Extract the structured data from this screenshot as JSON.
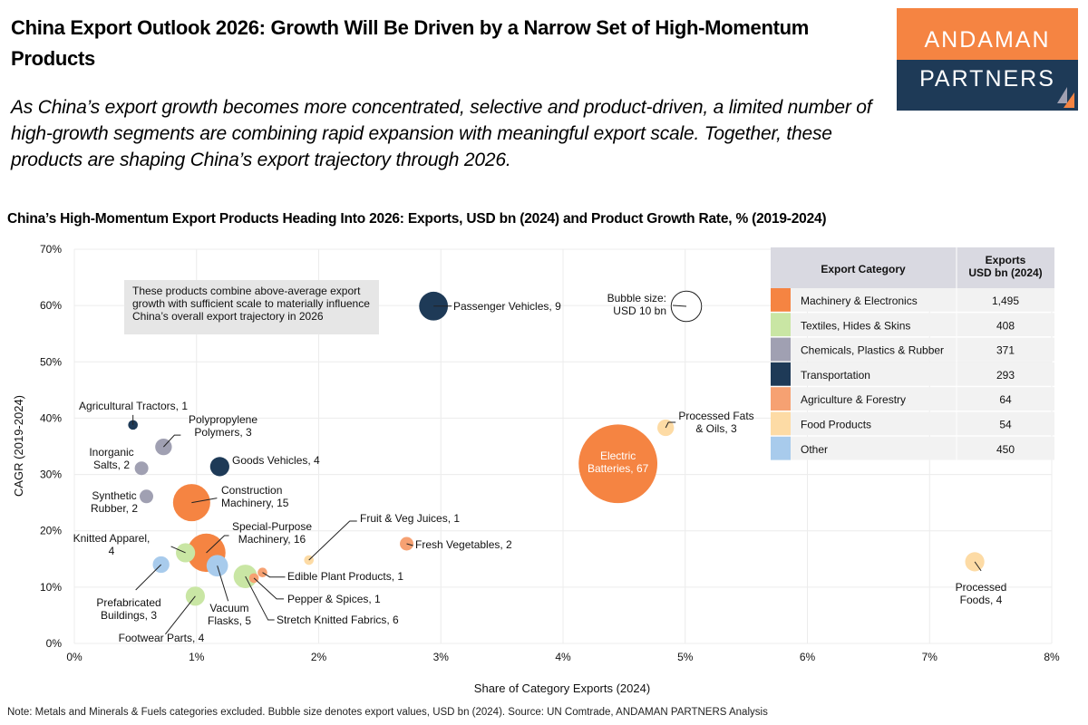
{
  "header": {
    "title": "China Export Outlook 2026: Growth Will Be Driven by a Narrow Set of High-Momentum Products",
    "subtitle": "As China’s export growth becomes more concentrated, selective and product-driven, a limited number of high-growth segments are combining rapid expansion with meaningful export scale. Together, these products are shaping China’s export trajectory through 2026."
  },
  "logo": {
    "line1": "ANDAMAN",
    "line2": "PARTNERS",
    "colors": {
      "orange": "#F58442",
      "navy": "#1E3A57"
    }
  },
  "note": "Note: Metals and Minerals & Fuels categories excluded. Bubble size denotes export values, USD bn (2024). Source: UN Comtrade, ANDAMAN PARTNERS Analysis",
  "chart_data": {
    "type": "scatter",
    "title": "China’s High-Momentum Export Products Heading Into 2026: Exports, USD bn (2024) and Product Growth Rate, % (2019-2024)",
    "xlabel": "Share of Category Exports (2024)",
    "ylabel": "CAGR (2019-2024)",
    "xlim": [
      0,
      8
    ],
    "ylim": [
      0,
      70
    ],
    "xticks": [
      "0%",
      "1%",
      "2%",
      "3%",
      "4%",
      "5%",
      "6%",
      "7%",
      "8%"
    ],
    "yticks": [
      "0%",
      "10%",
      "20%",
      "30%",
      "40%",
      "50%",
      "60%",
      "70%"
    ],
    "grid": true,
    "annotation": [
      "These products combine above-average export",
      "growth with sufficient scale to materially influence",
      "China’s overall export trajectory in 2026"
    ],
    "bubble_key": {
      "lines": [
        "Bubble size:",
        "USD 10 bn"
      ],
      "value": 10
    },
    "legend": {
      "placement": "top-right",
      "headers": [
        "Export Category",
        "Exports",
        "USD bn (2024)"
      ],
      "rows": [
        {
          "category": "Machinery & Electronics",
          "value": "1,495",
          "color": "#F58442"
        },
        {
          "category": "Textiles, Hides & Skins",
          "value": "408",
          "color": "#C9E6A4"
        },
        {
          "category": "Chemicals, Plastics & Rubber",
          "value": "371",
          "color": "#A0A0B2"
        },
        {
          "category": "Transportation",
          "value": "293",
          "color": "#1E3A57"
        },
        {
          "category": "Agriculture & Forestry",
          "value": "64",
          "color": "#F6A172"
        },
        {
          "category": "Food Products",
          "value": "54",
          "color": "#FDDBA5"
        },
        {
          "category": "Other",
          "value": "450",
          "color": "#A8CBEC"
        }
      ]
    },
    "points": [
      {
        "name": "Passenger Vehicles",
        "size": 9,
        "x": 2.94,
        "y": 59.9,
        "cat": 3,
        "label": [
          "Passenger Vehicles, 9"
        ]
      },
      {
        "name": "Electric Batteries",
        "size": 67,
        "x": 4.45,
        "y": 31.9,
        "cat": 0,
        "label": [
          "Electric",
          "Batteries, 67"
        ]
      },
      {
        "name": "Processed Fats & Oils",
        "size": 3,
        "x": 4.84,
        "y": 38.3,
        "cat": 5,
        "label": [
          "Processed Fats",
          "& Oils, 3"
        ]
      },
      {
        "name": "Processed Foods",
        "size": 4,
        "x": 7.37,
        "y": 14.5,
        "cat": 5,
        "label": [
          "Processed",
          "Foods, 4"
        ]
      },
      {
        "name": "Agricultural Tractors",
        "size": 1,
        "x": 0.48,
        "y": 38.8,
        "cat": 3,
        "label": [
          "Agricultural Tractors, 1"
        ]
      },
      {
        "name": "Polypropylene Polymers",
        "size": 3,
        "x": 0.73,
        "y": 34.9,
        "cat": 2,
        "label": [
          "Polypropylene",
          "Polymers, 3"
        ]
      },
      {
        "name": "Inorganic Salts",
        "size": 2,
        "x": 0.55,
        "y": 31.1,
        "cat": 2,
        "label": [
          "Inorganic",
          "Salts, 2"
        ]
      },
      {
        "name": "Goods Vehicles",
        "size": 4,
        "x": 1.19,
        "y": 31.4,
        "cat": 3,
        "label": [
          "Goods Vehicles, 4"
        ]
      },
      {
        "name": "Synthetic Rubber",
        "size": 2,
        "x": 0.59,
        "y": 26.1,
        "cat": 2,
        "label": [
          "Synthetic",
          "Rubber, 2"
        ]
      },
      {
        "name": "Construction Machinery",
        "size": 15,
        "x": 0.96,
        "y": 25.0,
        "cat": 0,
        "label": [
          "Construction",
          "Machinery, 15"
        ]
      },
      {
        "name": "Special-Purpose Machinery",
        "size": 16,
        "x": 1.08,
        "y": 16.1,
        "cat": 0,
        "label": [
          "Special-Purpose",
          "Machinery, 16"
        ]
      },
      {
        "name": "Knitted Apparel",
        "size": 4,
        "x": 0.91,
        "y": 16.1,
        "cat": 1,
        "label": [
          "Knitted Apparel,",
          "4"
        ]
      },
      {
        "name": "Prefabricated Buildings",
        "size": 3,
        "x": 0.71,
        "y": 14.0,
        "cat": 6,
        "label": [
          "Prefabricated",
          "Buildings, 3"
        ]
      },
      {
        "name": "Vacuum Flasks",
        "size": 5,
        "x": 1.17,
        "y": 13.8,
        "cat": 6,
        "label": [
          "Vacuum",
          "Flasks, 5"
        ]
      },
      {
        "name": "Stretch Knitted Fabrics",
        "size": 6,
        "x": 1.4,
        "y": 11.9,
        "cat": 1,
        "label": [
          "Stretch Knitted Fabrics, 6"
        ]
      },
      {
        "name": "Edible Plant Products",
        "size": 1,
        "x": 1.54,
        "y": 12.6,
        "cat": 4,
        "label": [
          "Edible Plant Products, 1"
        ]
      },
      {
        "name": "Pepper & Spices",
        "size": 1,
        "x": 1.47,
        "y": 11.6,
        "cat": 4,
        "label": [
          "Pepper & Spices, 1"
        ]
      },
      {
        "name": "Footwear Parts",
        "size": 4,
        "x": 0.99,
        "y": 8.4,
        "cat": 1,
        "label": [
          "Footwear Parts, 4"
        ]
      },
      {
        "name": "Fruit & Veg Juices",
        "size": 1,
        "x": 1.92,
        "y": 14.8,
        "cat": 5,
        "label": [
          "Fruit & Veg Juices, 1"
        ]
      },
      {
        "name": "Fresh Vegetables",
        "size": 2,
        "x": 2.72,
        "y": 17.7,
        "cat": 4,
        "label": [
          "Fresh Vegetables, 2"
        ]
      }
    ]
  }
}
